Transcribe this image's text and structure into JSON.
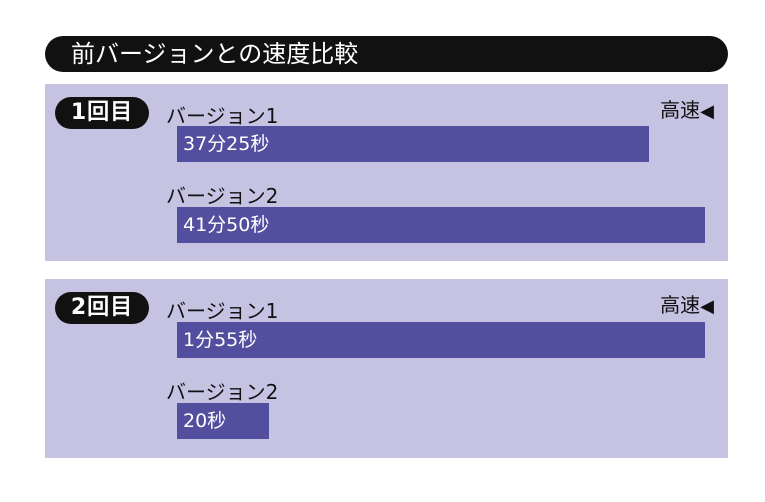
{
  "title": "前バージョンとの速度比較",
  "colors": {
    "title_bg": "#111111",
    "panel_bg": "#c5c2e2",
    "bar": "#524f9f"
  },
  "chart_data": [
    {
      "type": "bar",
      "orientation": "horizontal",
      "badge": "1回目",
      "speed_note": "高速",
      "speed_note_icon": "left-triangle-icon",
      "categories": [
        "バージョン1",
        "バージョン2"
      ],
      "values_seconds": [
        2245,
        2510
      ],
      "value_labels": [
        "37分25秒",
        "41分50秒"
      ]
    },
    {
      "type": "bar",
      "orientation": "horizontal",
      "badge": "2回目",
      "speed_note": "高速",
      "speed_note_icon": "left-triangle-icon",
      "categories": [
        "バージョン1",
        "バージョン2"
      ],
      "values_seconds": [
        115,
        20
      ],
      "value_labels": [
        "1分55秒",
        "20秒"
      ]
    }
  ]
}
